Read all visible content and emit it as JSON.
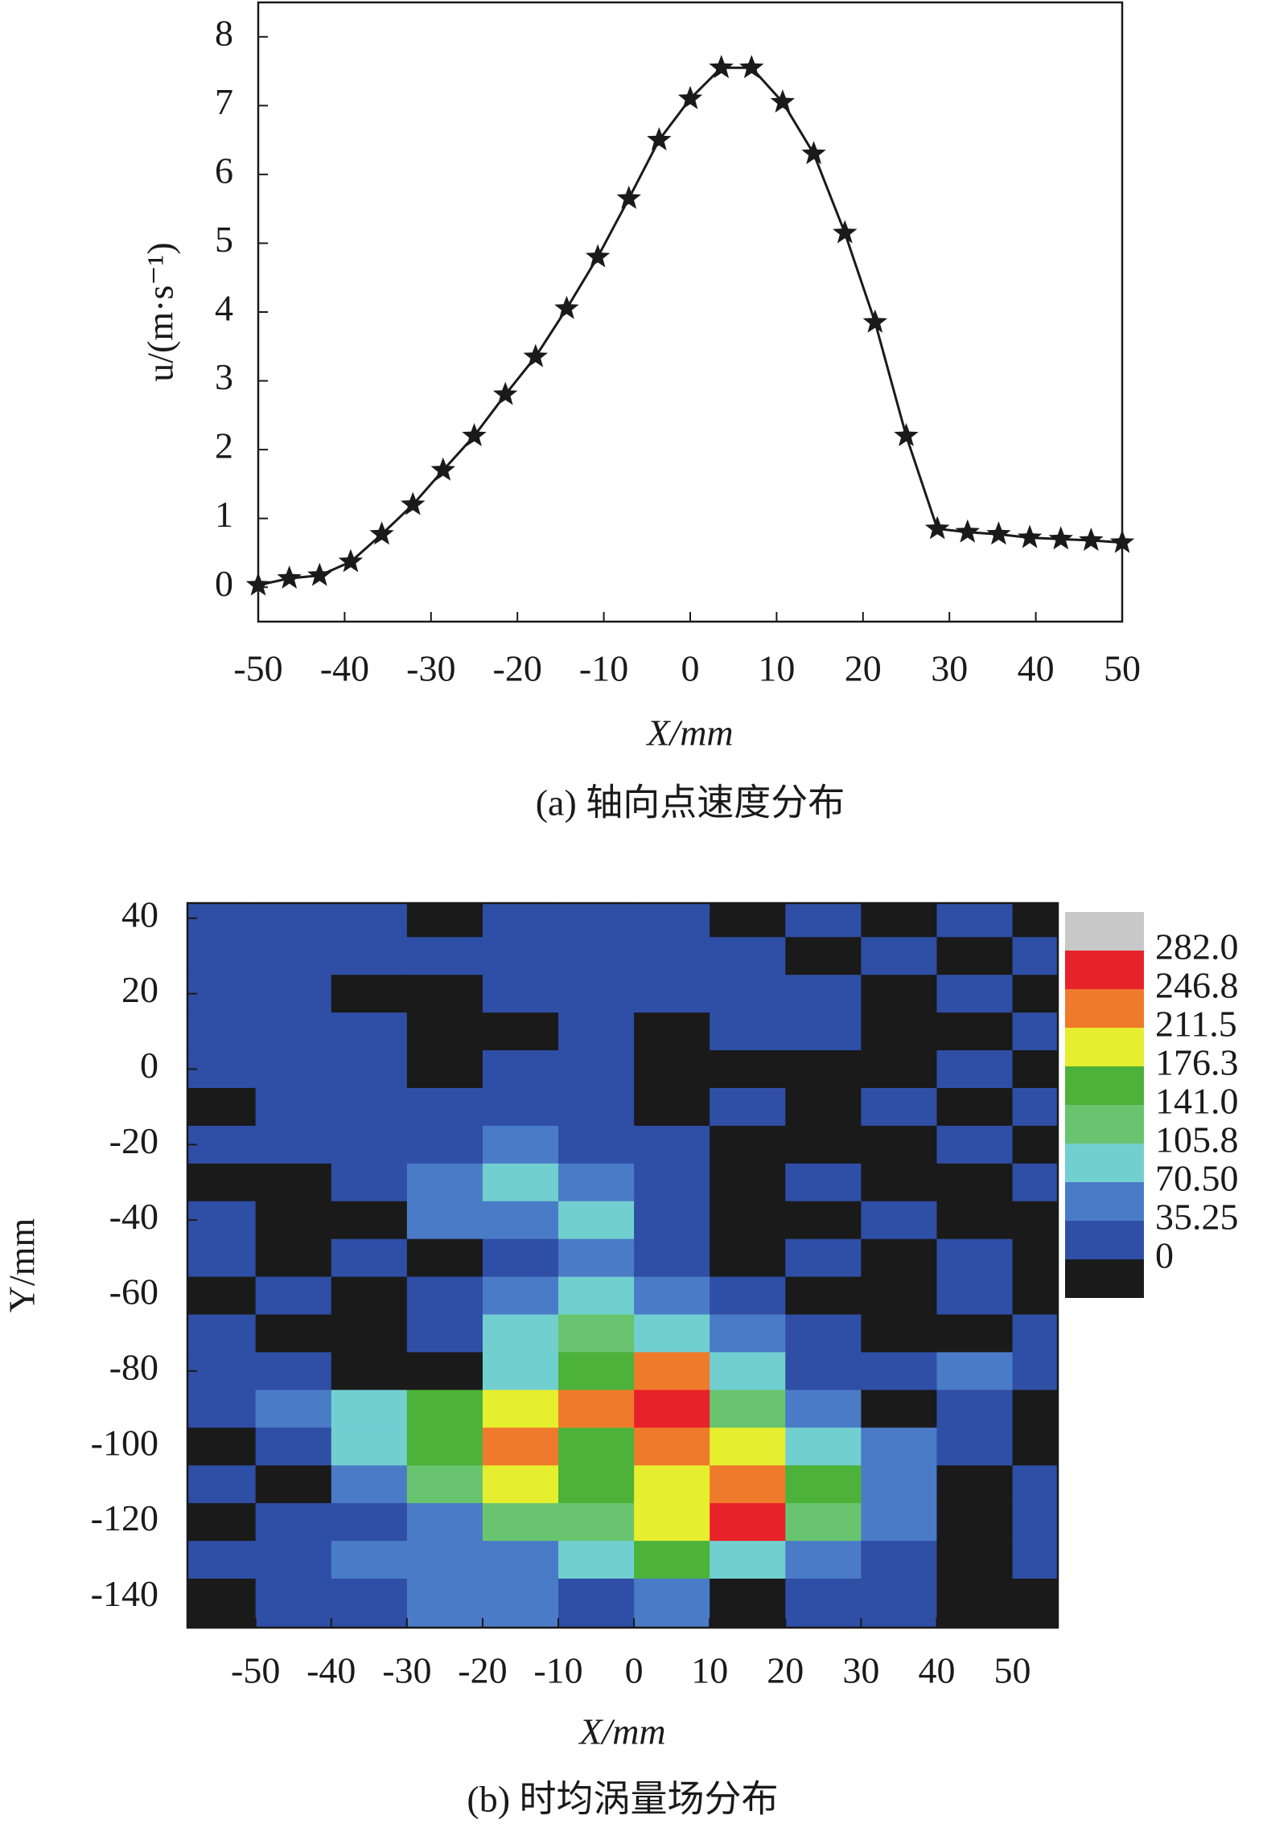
{
  "chart_data": [
    {
      "type": "line",
      "caption": "(a) 轴向点速度分布",
      "xlabel": "X/mm",
      "ylabel": "u/(m·s⁻¹)",
      "x": [
        -50,
        -46.4,
        -42.9,
        -39.3,
        -35.7,
        -32.1,
        -28.6,
        -25,
        -21.4,
        -17.9,
        -14.3,
        -10.7,
        -7.1,
        -3.6,
        0,
        3.6,
        7.1,
        10.7,
        14.3,
        17.9,
        21.4,
        25,
        28.6,
        32.1,
        35.7,
        39.3,
        42.9,
        46.4,
        50
      ],
      "series": [
        {
          "color": "#1a1a1a",
          "values": [
            0.03,
            0.13,
            0.17,
            0.37,
            0.77,
            1.2,
            1.7,
            2.2,
            2.8,
            3.35,
            4.05,
            4.8,
            5.65,
            6.5,
            7.1,
            7.55,
            7.55,
            7.05,
            6.3,
            5.15,
            3.85,
            2.2,
            0.85,
            0.8,
            0.77,
            0.72,
            0.7,
            0.68,
            0.65
          ]
        }
      ],
      "xlim": [
        -50,
        50
      ],
      "ylim": [
        -0.5,
        8.5
      ],
      "xticks": [
        -50,
        -40,
        -30,
        -20,
        -10,
        0,
        10,
        20,
        30,
        40,
        50
      ],
      "yticks": [
        0,
        1,
        2,
        3,
        4,
        5,
        6,
        7,
        8
      ]
    },
    {
      "type": "contour",
      "caption": "(b) 时均涡量场分布",
      "xlabel": "X/mm",
      "ylabel": "Y/mm",
      "x": [
        -55,
        -45,
        -35,
        -25,
        -15,
        -5,
        5,
        15,
        25,
        35,
        45,
        55
      ],
      "y": [
        40,
        30,
        20,
        10,
        0,
        -10,
        -20,
        -30,
        -40,
        -50,
        -60,
        -70,
        -80,
        -90,
        -100,
        -110,
        -120,
        -130,
        -140
      ],
      "z": [
        [
          20,
          20,
          20,
          -5,
          20,
          20,
          20,
          -5,
          20,
          -5,
          20,
          -5
        ],
        [
          20,
          20,
          20,
          20,
          20,
          20,
          20,
          20,
          -5,
          20,
          -5,
          20
        ],
        [
          20,
          20,
          -5,
          -5,
          20,
          20,
          20,
          20,
          20,
          -5,
          20,
          -5
        ],
        [
          20,
          20,
          20,
          -5,
          -5,
          20,
          -5,
          20,
          20,
          -5,
          -5,
          20
        ],
        [
          20,
          20,
          20,
          -5,
          20,
          20,
          -5,
          -5,
          -5,
          -5,
          20,
          -5
        ],
        [
          -5,
          20,
          20,
          20,
          20,
          20,
          -5,
          20,
          -5,
          20,
          -5,
          20
        ],
        [
          20,
          20,
          20,
          20,
          40,
          20,
          20,
          -5,
          -5,
          -5,
          20,
          -5
        ],
        [
          -5,
          -5,
          20,
          40,
          80,
          40,
          20,
          -5,
          20,
          -5,
          -5,
          20
        ],
        [
          20,
          -5,
          -5,
          40,
          40,
          80,
          20,
          -5,
          -5,
          20,
          -5,
          -5
        ],
        [
          20,
          -5,
          20,
          -5,
          20,
          40,
          20,
          -5,
          20,
          -5,
          20,
          -5
        ],
        [
          -5,
          20,
          -5,
          20,
          40,
          80,
          40,
          20,
          -5,
          -5,
          20,
          -5
        ],
        [
          20,
          -5,
          -5,
          20,
          80,
          120,
          100,
          40,
          20,
          -5,
          -5,
          20
        ],
        [
          20,
          20,
          -5,
          -5,
          80,
          160,
          230,
          80,
          20,
          20,
          60,
          20
        ],
        [
          20,
          40,
          90,
          150,
          200,
          220,
          260,
          130,
          40,
          -5,
          20,
          -5
        ],
        [
          -5,
          20,
          100,
          160,
          230,
          170,
          220,
          180,
          80,
          60,
          20,
          -5
        ],
        [
          20,
          -5,
          40,
          110,
          180,
          150,
          200,
          220,
          160,
          50,
          -5,
          20
        ],
        [
          -5,
          20,
          30,
          60,
          110,
          120,
          180,
          250,
          130,
          40,
          -5,
          20
        ],
        [
          20,
          20,
          40,
          40,
          60,
          90,
          150,
          90,
          40,
          20,
          -5,
          20
        ],
        [
          -5,
          20,
          20,
          40,
          40,
          30,
          40,
          -5,
          20,
          20,
          -5,
          -5
        ]
      ],
      "levels": [
        0,
        35.25,
        {
          "value": 70.5,
          "label": "70.50"
        },
        105.8,
        {
          "value": 141,
          "label": "141.0"
        },
        176.3,
        211.5,
        246.8,
        {
          "value": 282,
          "label": "282.0"
        }
      ],
      "colors": [
        "#1a1a1a",
        "#2f4ea5",
        "#4a7bc6",
        "#72cfd0",
        "#69c46f",
        "#4cb23a",
        "#e6ee30",
        "#f07a2b",
        "#e8222a",
        "#c8c8c8"
      ],
      "xlim": [
        -59,
        56
      ],
      "ylim": [
        -148,
        44
      ],
      "xticks": [
        -50,
        -40,
        -30,
        -20,
        -10,
        0,
        10,
        20,
        30,
        40,
        50
      ],
      "yticks": [
        40,
        20,
        0,
        -20,
        -40,
        -60,
        -80,
        -100,
        -120,
        -140
      ]
    }
  ]
}
